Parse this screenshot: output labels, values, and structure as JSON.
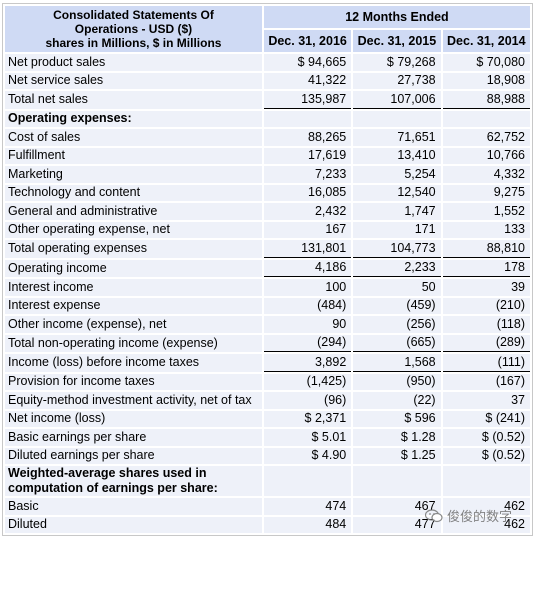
{
  "header": {
    "title_line1": "Consolidated Statements Of",
    "title_line2": "Operations - USD ($)",
    "title_line3": "shares in Millions, $ in Millions",
    "period": "12 Months Ended",
    "columns": [
      "Dec. 31, 2016",
      "Dec. 31, 2015",
      "Dec. 31, 2014"
    ]
  },
  "rows": [
    {
      "label": "Net product sales",
      "values": [
        "$ 94,665",
        "$ 79,268",
        "$ 70,080"
      ]
    },
    {
      "label": "Net service sales",
      "values": [
        "41,322",
        "27,738",
        "18,908"
      ]
    },
    {
      "label": "Total net sales",
      "values": [
        "135,987",
        "107,006",
        "88,988"
      ]
    },
    {
      "label": "Operating expenses:",
      "values": [
        "",
        "",
        ""
      ]
    },
    {
      "label": "Cost of sales",
      "values": [
        "88,265",
        "71,651",
        "62,752"
      ]
    },
    {
      "label": "Fulfillment",
      "values": [
        "17,619",
        "13,410",
        "10,766"
      ]
    },
    {
      "label": "Marketing",
      "values": [
        "7,233",
        "5,254",
        "4,332"
      ]
    },
    {
      "label": "Technology and content",
      "values": [
        "16,085",
        "12,540",
        "9,275"
      ]
    },
    {
      "label": "General and administrative",
      "values": [
        "2,432",
        "1,747",
        "1,552"
      ]
    },
    {
      "label": "Other operating expense, net",
      "values": [
        "167",
        "171",
        "133"
      ]
    },
    {
      "label": "Total operating expenses",
      "values": [
        "131,801",
        "104,773",
        "88,810"
      ]
    },
    {
      "label": "Operating income",
      "values": [
        "4,186",
        "2,233",
        "178"
      ]
    },
    {
      "label": "Interest income",
      "values": [
        "100",
        "50",
        "39"
      ]
    },
    {
      "label": "Interest expense",
      "values": [
        "(484)",
        "(459)",
        "(210)"
      ]
    },
    {
      "label": "Other income (expense), net",
      "values": [
        "90",
        "(256)",
        "(118)"
      ]
    },
    {
      "label": "Total non-operating income (expense)",
      "values": [
        "(294)",
        "(665)",
        "(289)"
      ]
    },
    {
      "label": "Income (loss) before income taxes",
      "values": [
        "3,892",
        "1,568",
        "(111)"
      ]
    },
    {
      "label": "Provision for income taxes",
      "values": [
        "(1,425)",
        "(950)",
        "(167)"
      ]
    },
    {
      "label": "Equity-method investment activity, net of tax",
      "values": [
        "(96)",
        "(22)",
        "37"
      ]
    },
    {
      "label": "Net income (loss)",
      "values": [
        "$ 2,371",
        "$ 596",
        "$ (241)"
      ]
    },
    {
      "label": "Basic earnings per share",
      "values": [
        "$ 5.01",
        "$ 1.28",
        "$ (0.52)"
      ]
    },
    {
      "label": "Diluted earnings per share",
      "values": [
        "$ 4.90",
        "$ 1.25",
        "$ (0.52)"
      ]
    },
    {
      "label": "Weighted-average shares used in computation of earnings per share:",
      "values": [
        "",
        "",
        ""
      ]
    },
    {
      "label": "Basic",
      "values": [
        "474",
        "467",
        "462"
      ]
    },
    {
      "label": "Diluted",
      "values": [
        "484",
        "477",
        "462"
      ]
    }
  ],
  "watermark": {
    "text": "俊俊的数字",
    "icon": "wechat-icon"
  }
}
